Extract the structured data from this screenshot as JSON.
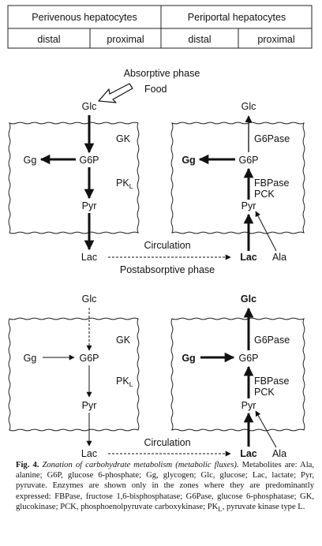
{
  "zone_table": {
    "perivenous": "Perivenous hepatocytes",
    "periportal": "Periportal hepatocytes",
    "distal_1": "distal",
    "proximal_1": "proximal",
    "distal_2": "distal",
    "proximal_2": "proximal"
  },
  "absorptive": {
    "phase_label": "Absorptive phase",
    "food": "Food",
    "left": {
      "glc": "Glc",
      "gk": "GK",
      "gg": "Gg",
      "g6p": "G6P",
      "pk": "PK",
      "pk_sub": "L",
      "pyr": "Pyr",
      "lac": "Lac"
    },
    "right": {
      "glc": "Glc",
      "g6pase": "G6Pase",
      "gg": "Gg",
      "g6p": "G6P",
      "fbpase": "FBPase",
      "pck": "PCK",
      "pyr": "Pyr",
      "lac": "Lac",
      "ala": "Ala"
    },
    "circulation": "Circulation"
  },
  "postabsorptive": {
    "phase_label": "Postabsorptive phase",
    "left": {
      "glc": "Glc",
      "gk": "GK",
      "gg": "Gg",
      "g6p": "G6P",
      "pk": "PK",
      "pk_sub": "L",
      "pyr": "Pyr",
      "lac": "Lac"
    },
    "right": {
      "glc": "Glc",
      "g6pase": "G6Pase",
      "gg": "Gg",
      "g6p": "G6P",
      "fbpase": "FBPase",
      "pck": "PCK",
      "pyr": "Pyr",
      "lac": "Lac",
      "ala": "Ala"
    },
    "circulation": "Circulation"
  },
  "caption": {
    "fig": "Fig. 4.",
    "title": "Zonation of carbohydrate metabolism (metabolic fluxes).",
    "body": "Metabolites are: Ala, alanine; G6P, glucose 6-phosphate; Gg, glycogen; Glc, glucose; Lac, lactate; Pyr, pyruvate. Enzymes are shown only in the zones where they are predominantly expressed: FBPase, fructose 1,6-bisphosphatase; G6Pase, glucose 6-phosphatase; GK, glucokinase; PCK, phosphoenolpyruvate carboxykinase;",
    "pk": "PK",
    "pk_sub": "L",
    "tail": ", pyruvate kinase type L."
  }
}
